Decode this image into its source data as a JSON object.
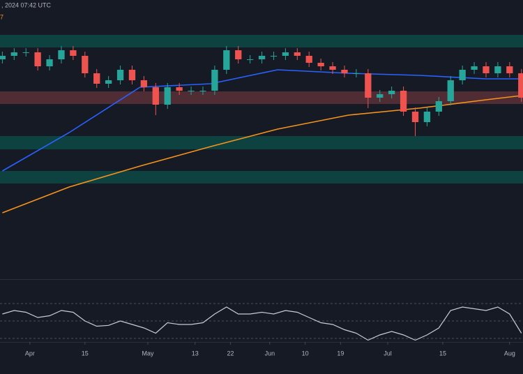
{
  "chart_data": {
    "type": "candlestick",
    "header": ", 2024 07:42 UTC",
    "indicator_label": "7",
    "up_color": "#26a69a",
    "down_color": "#ef5350",
    "xlim": [
      -7.6,
      125.4
    ],
    "ylim": [
      0,
      400
    ],
    "xticks": [
      {
        "value": 0,
        "label": "Apr"
      },
      {
        "value": 14,
        "label": "15"
      },
      {
        "value": 30,
        "label": "May"
      },
      {
        "value": 42,
        "label": "13"
      },
      {
        "value": 51,
        "label": "22"
      },
      {
        "value": 61,
        "label": "Jun"
      },
      {
        "value": 70,
        "label": "10"
      },
      {
        "value": 79,
        "label": "19"
      },
      {
        "value": 91,
        "label": "Jul"
      },
      {
        "value": 105,
        "label": "15"
      },
      {
        "value": 122,
        "label": "Aug"
      }
    ],
    "zones": [
      {
        "low": 332,
        "high": 350,
        "color": "#0d4a45"
      },
      {
        "low": 251,
        "high": 269,
        "color": "#5b3138"
      },
      {
        "low": 186,
        "high": 205,
        "color": "#0d4a45"
      },
      {
        "low": 137,
        "high": 155,
        "color": "#0d4a45"
      }
    ],
    "x": [
      -7,
      -4,
      -1,
      2,
      5,
      8,
      11,
      14,
      17,
      20,
      23,
      26,
      29,
      32,
      35,
      38,
      41,
      44,
      47,
      50,
      53,
      56,
      59,
      62,
      65,
      68,
      71,
      74,
      77,
      80,
      83,
      86,
      89,
      92,
      95,
      98,
      101,
      104,
      107,
      110,
      113,
      116,
      119,
      122,
      125
    ],
    "open": [
      315,
      320,
      325,
      325,
      305,
      315,
      328,
      320,
      295,
      280,
      285,
      300,
      285,
      275,
      250,
      275,
      270,
      270,
      270,
      300,
      328,
      315,
      315,
      320,
      320,
      325,
      320,
      310,
      305,
      300,
      295,
      295,
      260,
      265,
      270,
      240,
      225,
      240,
      255,
      285,
      300,
      305,
      295,
      305,
      295
    ],
    "high": [
      326,
      331,
      331,
      331,
      321,
      334,
      334,
      326,
      301,
      291,
      306,
      306,
      291,
      281,
      281,
      281,
      276,
      276,
      306,
      334,
      334,
      321,
      326,
      326,
      331,
      331,
      326,
      316,
      311,
      306,
      301,
      301,
      271,
      276,
      276,
      246,
      246,
      261,
      291,
      306,
      311,
      311,
      311,
      311,
      301
    ],
    "low": [
      309,
      314,
      319,
      299,
      299,
      309,
      314,
      289,
      274,
      274,
      279,
      279,
      269,
      235,
      244,
      264,
      264,
      264,
      264,
      294,
      309,
      309,
      309,
      314,
      314,
      314,
      304,
      299,
      294,
      289,
      289,
      245,
      254,
      259,
      234,
      205,
      219,
      234,
      249,
      279,
      294,
      289,
      289,
      289,
      254
    ],
    "close": [
      320,
      325,
      325,
      305,
      315,
      328,
      320,
      295,
      280,
      285,
      300,
      285,
      275,
      250,
      275,
      270,
      270,
      270,
      300,
      328,
      315,
      315,
      320,
      320,
      325,
      320,
      310,
      305,
      300,
      295,
      295,
      260,
      265,
      270,
      240,
      225,
      240,
      255,
      285,
      300,
      305,
      295,
      305,
      295,
      260
    ],
    "lines": [
      {
        "color": "#2962ff",
        "x": [
          -7,
          10,
          28,
          46,
          63,
          81,
          99,
          116,
          125
        ],
        "values": [
          155,
          210,
          275,
          280,
          300,
          295,
          292,
          287,
          287
        ]
      },
      {
        "color": "#f7931a",
        "x": [
          -7,
          10,
          28,
          46,
          63,
          81,
          99,
          116,
          125
        ],
        "values": [
          95,
          132,
          162,
          190,
          215,
          235,
          245,
          257,
          263
        ]
      }
    ],
    "rsi": {
      "color": "#c8cbd3",
      "ylim": [
        26,
        98
      ],
      "levels": [
        30,
        50,
        70
      ],
      "values": [
        58,
        62,
        60,
        54,
        56,
        62,
        60,
        50,
        44,
        45,
        50,
        46,
        42,
        36,
        48,
        46,
        46,
        48,
        58,
        66,
        58,
        58,
        60,
        58,
        62,
        60,
        54,
        48,
        46,
        40,
        36,
        28,
        34,
        38,
        34,
        28,
        34,
        42,
        62,
        66,
        64,
        62,
        66,
        58,
        36
      ]
    }
  }
}
